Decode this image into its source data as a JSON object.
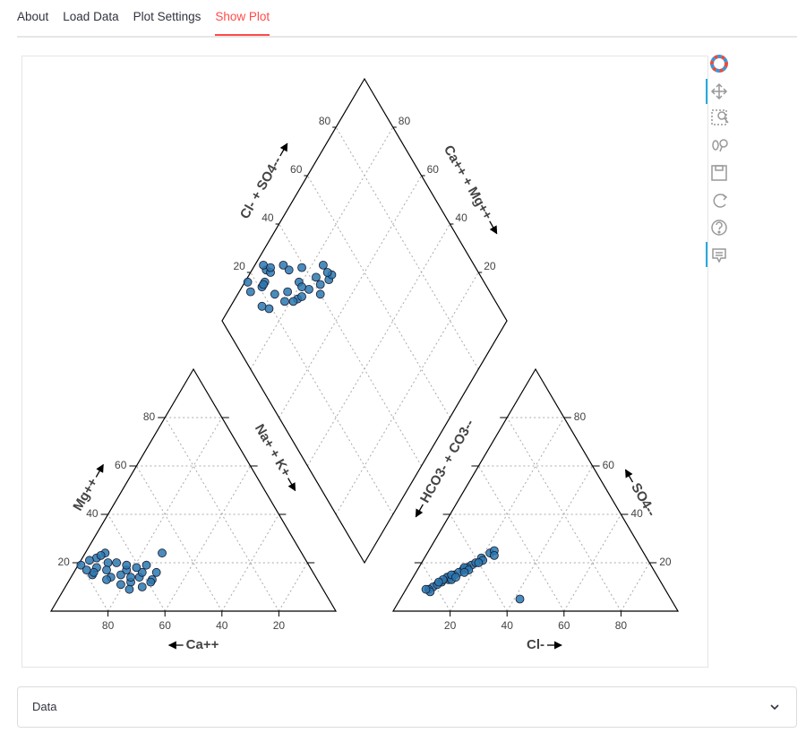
{
  "tabs": [
    "About",
    "Load Data",
    "Plot Settings",
    "Show Plot"
  ],
  "active_tab": 3,
  "expander": "Data",
  "chart_data": {
    "type": "piper",
    "color": "#2a78b0",
    "grid": true,
    "left_triangle": {
      "ca_label": "Ca++",
      "mg_label": "Mg++",
      "ca_ticks": [
        80,
        60,
        40,
        20
      ],
      "mg_ticks": [
        20,
        40,
        60,
        80
      ],
      "na_ticks": [
        20,
        40,
        60,
        80
      ]
    },
    "right_triangle": {
      "cl_label": "Cl-",
      "so4_label": "SO4--",
      "cl_ticks": [
        20,
        40,
        60,
        80
      ],
      "so4_ticks": [
        20,
        40,
        60,
        80
      ],
      "hco3_ticks": [
        20,
        40,
        60,
        80
      ]
    },
    "diamond": {
      "left_label": "Cl- + SO4--",
      "right_label": "Ca++ + Mg++",
      "lower_left_label": "Na+ + K+",
      "lower_right_label": "HCO3- + CO3--",
      "left_ticks": [
        20,
        40,
        60,
        80
      ],
      "right_ticks": [
        80,
        60,
        40,
        20
      ]
    },
    "samples": {
      "ca": [
        72,
        75,
        68,
        70,
        65,
        62,
        78,
        80,
        73,
        66,
        60,
        58,
        64,
        70,
        76,
        69,
        63,
        55,
        72,
        67,
        49,
        74,
        61,
        77,
        59,
        71,
        65,
        57,
        68,
        79
      ],
      "mg": [
        14,
        18,
        15,
        20,
        17,
        14,
        15,
        19,
        22,
        12,
        16,
        13,
        19,
        11,
        21,
        24,
        10,
        16,
        17,
        20,
        24,
        13,
        18,
        16,
        12,
        23,
        14,
        19,
        9,
        17
      ],
      "cl": [
        9,
        11,
        14,
        16,
        12,
        18,
        10,
        8,
        13,
        15,
        20,
        22,
        19,
        17,
        12,
        14,
        21,
        23,
        9,
        16,
        42,
        11,
        18,
        10,
        20,
        13,
        15,
        24,
        17,
        7
      ],
      "so4": [
        10,
        12,
        15,
        17,
        14,
        19,
        11,
        9,
        13,
        16,
        22,
        24,
        20,
        18,
        14,
        13,
        21,
        25,
        8,
        18,
        5,
        13,
        17,
        12,
        20,
        15,
        14,
        23,
        16,
        9
      ]
    }
  }
}
